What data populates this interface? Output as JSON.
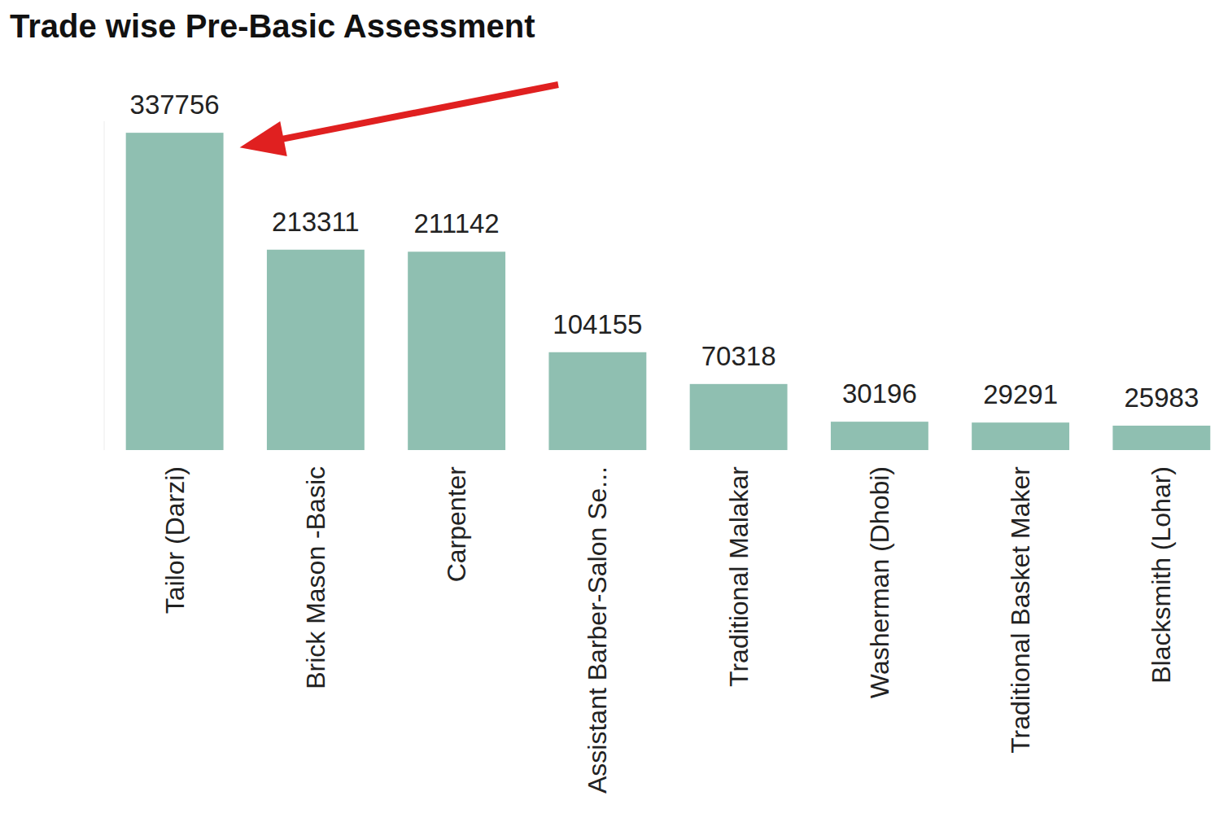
{
  "chart_data": {
    "type": "bar",
    "title": "Trade wise Pre-Basic Assessment",
    "categories": [
      "Tailor (Darzi)",
      "Brick Mason -Basic",
      "Carpenter",
      "Assistant Barber-Salon Se...",
      "Traditional Malakar",
      "Washerman (Dhobi)",
      "Traditional Basket Maker",
      "Blacksmith (Lohar)"
    ],
    "values": [
      337756,
      213311,
      211142,
      104155,
      70318,
      30196,
      29291,
      25983
    ],
    "color": "#8fbfb1",
    "ylim": [
      0,
      350000
    ],
    "data_labels": true,
    "tick_labels": "x",
    "grid": false
  }
}
